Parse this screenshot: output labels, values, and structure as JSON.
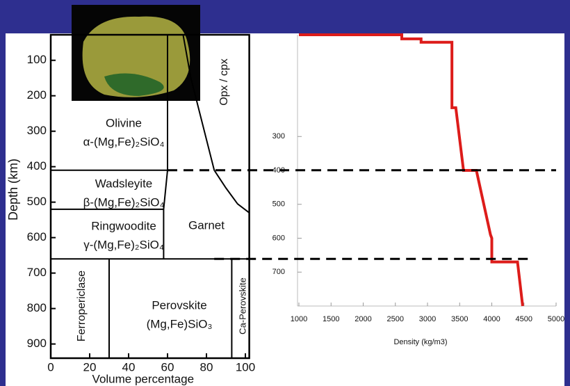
{
  "chart_data": [
    {
      "type": "phase",
      "ylabel": "Depth (km)",
      "xlabel": "Volume percentage",
      "xlim": [
        0,
        102
      ],
      "ylim": [
        28,
        940
      ],
      "xticks": [
        0,
        20,
        40,
        60,
        80,
        100
      ],
      "yticks": [
        100,
        200,
        300,
        400,
        500,
        600,
        700,
        800,
        900
      ],
      "boundaries": [
        {
          "x": [
            0,
            60
          ],
          "depth": [
            410,
            410
          ]
        },
        {
          "x": [
            0,
            58
          ],
          "depth": [
            520,
            520
          ]
        },
        {
          "x": [
            0,
            102
          ],
          "depth": [
            660,
            660
          ]
        },
        {
          "x": [
            60,
            60
          ],
          "depth": [
            28,
            410
          ]
        },
        {
          "x": [
            60,
            58
          ],
          "depth": [
            410,
            520
          ]
        },
        {
          "x": [
            58,
            58
          ],
          "depth": [
            520,
            660
          ]
        },
        {
          "x": [
            30,
            30
          ],
          "depth": [
            660,
            940
          ]
        },
        {
          "x": [
            93,
            93
          ],
          "depth": [
            660,
            940
          ]
        },
        {
          "x": [
            68,
            72,
            78,
            84,
            90,
            96,
            102
          ],
          "depth": [
            28,
            150,
            280,
            410,
            460,
            505,
            530
          ]
        }
      ],
      "discontinuities": [
        410,
        660
      ],
      "regions": [
        {
          "name": "Olivine",
          "formula": "α-(Mg,Fe)₂SiO₄"
        },
        {
          "name": "Wadsleyite",
          "formula": "β-(Mg,Fe)₂SiO₄"
        },
        {
          "name": "Ringwoodite",
          "formula": "γ-(Mg,Fe)₂SiO₄"
        },
        {
          "name": "Garnet"
        },
        {
          "name": "Opx / cpx"
        },
        {
          "name": "Ferropericlase"
        },
        {
          "name": "Perovskite",
          "formula": "(Mg,Fe)SiO₃"
        },
        {
          "name": "Ca-Perovskite"
        }
      ]
    },
    {
      "type": "line",
      "xlabel": "Density (kg/m3)",
      "xlim": [
        1000,
        5000
      ],
      "ylim": [
        0,
        800
      ],
      "xticks": [
        1000,
        1500,
        2000,
        2500,
        3000,
        3500,
        4000,
        4500,
        5000
      ],
      "yticks": [
        300,
        400,
        500,
        600,
        700
      ],
      "series": [
        {
          "color": "#dd1c1a",
          "x": [
            1000,
            2600,
            2600,
            2900,
            2900,
            3380,
            3380,
            3440,
            3560,
            3760,
            3980,
            4000,
            4000,
            4400,
            4480
          ],
          "values": [
            0,
            0,
            12,
            12,
            22,
            22,
            215,
            215,
            400,
            400,
            590,
            600,
            670,
            670,
            800
          ]
        }
      ]
    }
  ]
}
